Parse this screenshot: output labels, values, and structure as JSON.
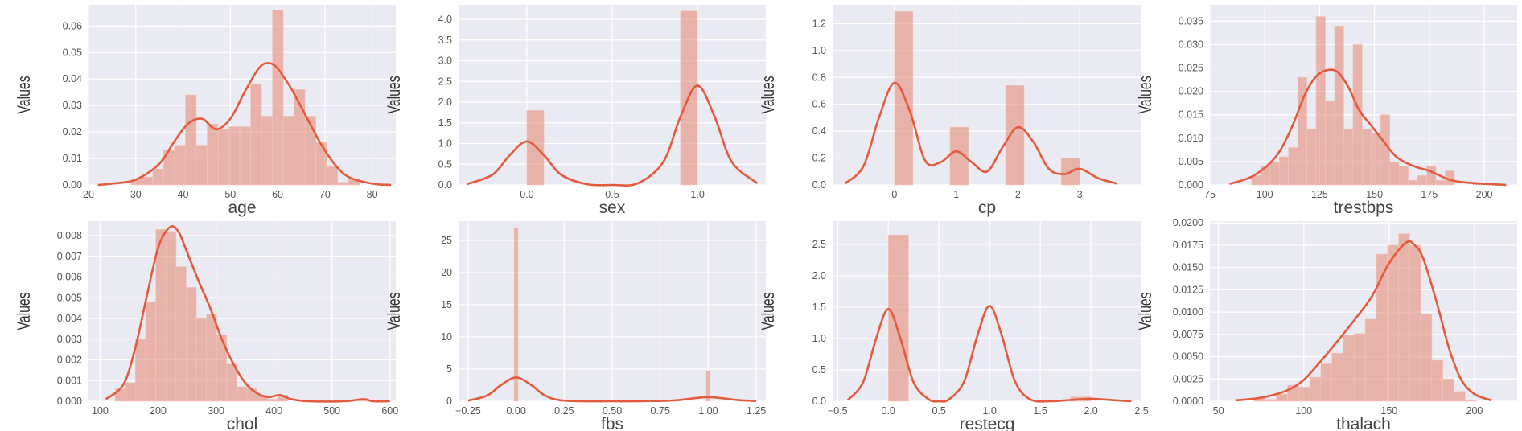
{
  "chart_data": [
    {
      "type": "bar",
      "xlabel": "age",
      "ylabel": "Values",
      "xlim": [
        20,
        85
      ],
      "ylim": [
        0,
        0.068
      ],
      "xticks": [
        20,
        30,
        40,
        50,
        60,
        70,
        80
      ],
      "xtick_labels": [
        "20",
        "30",
        "40",
        "50",
        "60",
        "70",
        "80"
      ],
      "yticks": [
        0,
        0.01,
        0.02,
        0.03,
        0.04,
        0.05,
        0.06
      ],
      "ytick_labels": [
        "0.00",
        "0.01",
        "0.02",
        "0.03",
        "0.04",
        "0.05",
        "0.06"
      ],
      "bins": [
        29,
        31.3,
        33.6,
        35.9,
        38.2,
        40.5,
        42.8,
        45.1,
        47.4,
        49.7,
        52,
        54.3,
        56.6,
        58.9,
        61.2,
        63.5,
        65.8,
        68.1,
        70.4,
        72.7,
        75,
        77.3
      ],
      "counts": [
        0.002,
        0.003,
        0.006,
        0.013,
        0.015,
        0.034,
        0.015,
        0.023,
        0.021,
        0.022,
        0.022,
        0.038,
        0.026,
        0.066,
        0.026,
        0.036,
        0.026,
        0.016,
        0.007,
        0.001,
        0.002
      ],
      "kde_x": [
        22,
        25,
        30,
        35,
        38,
        41,
        44,
        47,
        50,
        53,
        56,
        58,
        60,
        63,
        66,
        69,
        72,
        75,
        80,
        84
      ],
      "kde_y": [
        0,
        0.0005,
        0.002,
        0.008,
        0.016,
        0.023,
        0.025,
        0.021,
        0.025,
        0.035,
        0.044,
        0.046,
        0.044,
        0.036,
        0.026,
        0.016,
        0.008,
        0.003,
        0.0005,
        0
      ]
    },
    {
      "type": "bar",
      "xlabel": "sex",
      "ylabel": "Values",
      "xlim": [
        -0.4,
        1.4
      ],
      "ylim": [
        0,
        4.35
      ],
      "xticks": [
        0,
        0.5,
        1
      ],
      "xtick_labels": [
        "0.0",
        "0.5",
        "1.0"
      ],
      "yticks": [
        0,
        0.5,
        1,
        1.5,
        2,
        2.5,
        3,
        3.5,
        4
      ],
      "ytick_labels": [
        "0.0",
        "0.5",
        "1.0",
        "1.5",
        "2.0",
        "2.5",
        "3.0",
        "3.5",
        "4.0"
      ],
      "bins": [
        0,
        0.1,
        0.2,
        0.3,
        0.4,
        0.5,
        0.6,
        0.7,
        0.8,
        0.9,
        1.0
      ],
      "counts": [
        1.8,
        0,
        0,
        0,
        0,
        0,
        0,
        0,
        0,
        4.2
      ],
      "kde_x": [
        -0.35,
        -0.2,
        -0.1,
        0,
        0.1,
        0.2,
        0.35,
        0.5,
        0.65,
        0.8,
        0.9,
        1.0,
        1.1,
        1.2,
        1.35
      ],
      "kde_y": [
        0.02,
        0.25,
        0.72,
        1.05,
        0.72,
        0.25,
        0.02,
        0.0,
        0.04,
        0.56,
        1.65,
        2.4,
        1.65,
        0.56,
        0.04
      ]
    },
    {
      "type": "bar",
      "xlabel": "cp",
      "ylabel": "Values",
      "xlim": [
        -1,
        4
      ],
      "ylim": [
        0,
        1.34
      ],
      "xticks": [
        0,
        1,
        2,
        3
      ],
      "xtick_labels": [
        "0",
        "1",
        "2",
        "3"
      ],
      "yticks": [
        0,
        0.2,
        0.4,
        0.6,
        0.8,
        1,
        1.2
      ],
      "ytick_labels": [
        "0.0",
        "0.2",
        "0.4",
        "0.6",
        "0.8",
        "1.0",
        "1.2"
      ],
      "bins": [
        0,
        0.3,
        0.6,
        0.9,
        1.2,
        1.5,
        1.8,
        2.1,
        2.4,
        2.7,
        3.0
      ],
      "counts": [
        1.29,
        0,
        0,
        0.43,
        0,
        0,
        0.74,
        0,
        0,
        0.2
      ],
      "kde_x": [
        -0.8,
        -0.5,
        -0.25,
        0,
        0.25,
        0.5,
        0.75,
        1.0,
        1.25,
        1.5,
        1.75,
        2.0,
        2.25,
        2.5,
        2.75,
        3.0,
        3.3,
        3.6
      ],
      "kde_y": [
        0.01,
        0.14,
        0.5,
        0.76,
        0.55,
        0.18,
        0.17,
        0.25,
        0.17,
        0.1,
        0.28,
        0.43,
        0.32,
        0.12,
        0.08,
        0.12,
        0.05,
        0.01
      ]
    },
    {
      "type": "bar",
      "xlabel": "trestbps",
      "ylabel": "Values",
      "xlim": [
        75,
        215
      ],
      "ylim": [
        0,
        0.0385
      ],
      "xticks": [
        75,
        100,
        125,
        150,
        175,
        200
      ],
      "xtick_labels": [
        "75",
        "100",
        "125",
        "150",
        "175",
        "200"
      ],
      "yticks": [
        0,
        0.005,
        0.01,
        0.015,
        0.02,
        0.025,
        0.03,
        0.035
      ],
      "ytick_labels": [
        "0.000",
        "0.005",
        "0.010",
        "0.015",
        "0.020",
        "0.025",
        "0.030",
        "0.035"
      ],
      "bins": [
        94,
        98.2,
        102.4,
        106.6,
        110.8,
        115,
        119.2,
        123.4,
        127.6,
        131.8,
        136,
        140.2,
        144.4,
        148.6,
        152.8,
        157,
        161.2,
        165.4,
        169.6,
        173.8,
        178,
        182.2,
        186.4,
        190.6,
        194.8,
        199
      ],
      "counts": [
        0.002,
        0.004,
        0.005,
        0.006,
        0.008,
        0.023,
        0.012,
        0.036,
        0.018,
        0.034,
        0.012,
        0.03,
        0.012,
        0.011,
        0.015,
        0.005,
        0.004,
        0.001,
        0.002,
        0.004,
        0.001,
        0.003,
        0,
        0,
        0.0005
      ],
      "kde_x": [
        84,
        95,
        105,
        112,
        118,
        123,
        128,
        133,
        138,
        143,
        148,
        153,
        160,
        168,
        175,
        185,
        195,
        210
      ],
      "kde_y": [
        0.0002,
        0.002,
        0.006,
        0.012,
        0.019,
        0.023,
        0.0245,
        0.0242,
        0.021,
        0.016,
        0.013,
        0.01,
        0.006,
        0.004,
        0.003,
        0.001,
        0.0004,
        0
      ]
    },
    {
      "type": "bar",
      "xlabel": "chol",
      "ylabel": "Values",
      "xlim": [
        80,
        610
      ],
      "ylim": [
        0,
        0.0087
      ],
      "xticks": [
        100,
        200,
        300,
        400,
        500,
        600
      ],
      "xtick_labels": [
        "100",
        "200",
        "300",
        "400",
        "500",
        "600"
      ],
      "yticks": [
        0,
        0.001,
        0.002,
        0.003,
        0.004,
        0.005,
        0.006,
        0.007,
        0.008
      ],
      "ytick_labels": [
        "0.000",
        "0.001",
        "0.002",
        "0.003",
        "0.004",
        "0.005",
        "0.006",
        "0.007",
        "0.008"
      ],
      "bins": [
        126,
        143.5,
        161,
        178.5,
        196,
        213.5,
        231,
        248.5,
        266,
        283.5,
        301,
        318.5,
        336,
        353.5,
        371,
        388.5,
        406,
        423.5,
        441,
        458.5,
        476,
        493.5,
        511,
        528.5,
        546,
        563.5
      ],
      "counts": [
        0.0006,
        0.0009,
        0.003,
        0.0048,
        0.0083,
        0.0082,
        0.0065,
        0.0055,
        0.004,
        0.0042,
        0.0032,
        0.0018,
        0.0007,
        0.0006,
        0.0003,
        0.0001,
        0.0003,
        0,
        0,
        0,
        0,
        0,
        0,
        0,
        0.0001
      ],
      "kde_x": [
        110,
        140,
        160,
        180,
        200,
        220,
        235,
        250,
        270,
        290,
        310,
        330,
        350,
        370,
        390,
        410,
        430,
        460,
        520,
        555,
        570,
        600
      ],
      "kde_y": [
        0.0001,
        0.0008,
        0.0025,
        0.005,
        0.0074,
        0.0084,
        0.0082,
        0.0072,
        0.0058,
        0.0045,
        0.003,
        0.0018,
        0.0009,
        0.0004,
        0.0002,
        0.0003,
        0.0001,
        0,
        0,
        0.0001,
        0,
        0
      ]
    },
    {
      "type": "bar",
      "xlabel": "fbs",
      "ylabel": "Values",
      "xlim": [
        -0.3,
        1.3
      ],
      "ylim": [
        0,
        28
      ],
      "xticks": [
        -0.25,
        0,
        0.25,
        0.5,
        0.75,
        1,
        1.25
      ],
      "xtick_labels": [
        "−0.25",
        "0.00",
        "0.25",
        "0.50",
        "0.75",
        "1.00",
        "1.25"
      ],
      "yticks": [
        0,
        5,
        10,
        15,
        20,
        25
      ],
      "ytick_labels": [
        "0",
        "5",
        "10",
        "15",
        "20",
        "25"
      ],
      "bins": [
        -0.01,
        0.01,
        0.99,
        1.01
      ],
      "counts": [
        27,
        0,
        4.7
      ],
      "kde_x": [
        -0.25,
        -0.15,
        -0.08,
        0,
        0.08,
        0.15,
        0.25,
        0.5,
        0.75,
        0.85,
        0.92,
        1.0,
        1.08,
        1.15,
        1.25
      ],
      "kde_y": [
        0.1,
        0.9,
        2.5,
        3.7,
        2.5,
        0.9,
        0.1,
        0,
        0.05,
        0.2,
        0.45,
        0.65,
        0.45,
        0.2,
        0.05
      ]
    },
    {
      "type": "bar",
      "xlabel": "restecg",
      "ylabel": "Values",
      "xlim": [
        -0.55,
        2.5
      ],
      "ylim": [
        0,
        2.87
      ],
      "xticks": [
        -0.5,
        0,
        0.5,
        1,
        1.5,
        2,
        2.5
      ],
      "xtick_labels": [
        "−0.5",
        "0.0",
        "0.5",
        "1.0",
        "1.5",
        "2.0",
        "2.5"
      ],
      "yticks": [
        0,
        0.5,
        1,
        1.5,
        2,
        2.5
      ],
      "ytick_labels": [
        "0.0",
        "0.5",
        "1.0",
        "1.5",
        "2.0",
        "2.5"
      ],
      "bins": [
        0,
        0.2,
        0.4,
        0.6,
        0.8,
        1.0,
        1.2,
        1.4,
        1.6,
        1.8,
        2.0
      ],
      "counts": [
        2.65,
        0,
        0,
        0,
        0,
        0,
        0,
        0,
        0,
        0.07
      ],
      "bar_offsets": [
        0,
        0,
        0,
        0,
        0,
        -0.05,
        0,
        0,
        0,
        0
      ],
      "kde_x": [
        -0.4,
        -0.25,
        -0.12,
        0,
        0.12,
        0.25,
        0.4,
        0.5,
        0.6,
        0.75,
        0.88,
        1.0,
        1.12,
        1.25,
        1.4,
        1.6,
        1.8,
        2.0,
        2.2,
        2.4
      ],
      "kde_y": [
        0.02,
        0.3,
        1.0,
        1.47,
        1.0,
        0.3,
        0.03,
        0.0,
        0.03,
        0.32,
        1.05,
        1.52,
        1.05,
        0.32,
        0.03,
        0.0,
        0.02,
        0.04,
        0.02,
        0.0
      ]
    },
    {
      "type": "bar",
      "xlabel": "thalach",
      "ylabel": "Values",
      "xlim": [
        45,
        225
      ],
      "ylim": [
        0,
        0.0202
      ],
      "xticks": [
        50,
        100,
        150,
        200
      ],
      "xtick_labels": [
        "50",
        "100",
        "150",
        "200"
      ],
      "yticks": [
        0,
        0.0025,
        0.005,
        0.0075,
        0.01,
        0.0125,
        0.015,
        0.0175,
        0.02
      ],
      "ytick_labels": [
        "0.0000",
        "0.0025",
        "0.0050",
        "0.0075",
        "0.0100",
        "0.0125",
        "0.0150",
        "0.0175",
        "0.0200"
      ],
      "bins": [
        71,
        77.5,
        84,
        90.5,
        97,
        103.5,
        110,
        116.5,
        123,
        129.5,
        136,
        142.5,
        149,
        155.5,
        162,
        168.5,
        175,
        181.5,
        188,
        194.5,
        201
      ],
      "counts": [
        0.0004,
        0.0002,
        0.0008,
        0.0018,
        0.0016,
        0.0027,
        0.0042,
        0.0054,
        0.0074,
        0.0076,
        0.0092,
        0.0165,
        0.0175,
        0.0188,
        0.0175,
        0.0098,
        0.0046,
        0.0025,
        0.0011,
        0.0001
      ],
      "kde_x": [
        60,
        75,
        90,
        100,
        110,
        120,
        130,
        140,
        150,
        160,
        165,
        170,
        178,
        185,
        192,
        200,
        210
      ],
      "kde_y": [
        0.0001,
        0.0004,
        0.0012,
        0.0024,
        0.0045,
        0.0068,
        0.0092,
        0.0118,
        0.0155,
        0.0178,
        0.0175,
        0.016,
        0.011,
        0.006,
        0.0025,
        0.0008,
        0.0001
      ]
    }
  ]
}
